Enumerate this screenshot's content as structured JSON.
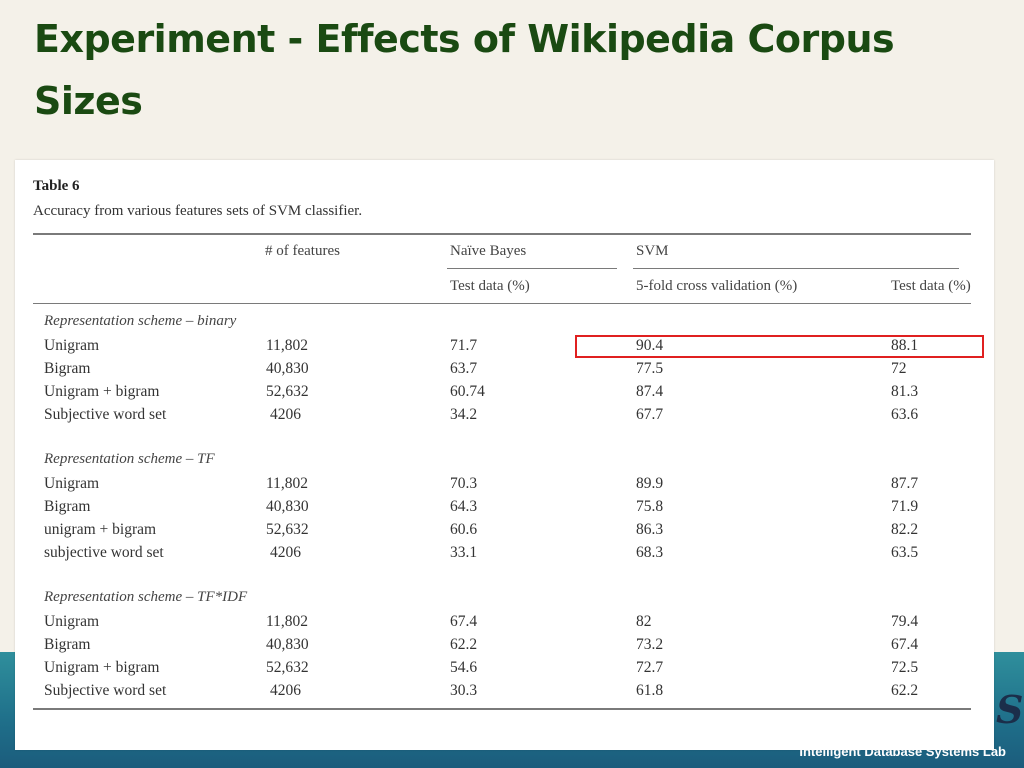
{
  "slide": {
    "title": "Experiment - Effects of Wikipedia Corpus Sizes",
    "footer_lab": "Intelligent Database Systems Lab",
    "logo_fragment": "S"
  },
  "table": {
    "label": "Table 6",
    "caption": "Accuracy from various features sets of SVM classifier.",
    "headers": {
      "features": "# of features",
      "naive_bayes": "Naïve Bayes",
      "svm": "SVM",
      "nb_test": "Test data (%)",
      "svm_cv": "5-fold cross validation (%)",
      "svm_test": "Test data (%)"
    },
    "sections": [
      {
        "title": "Representation scheme – binary",
        "rows": [
          {
            "name": "Unigram",
            "features": "11,802",
            "nb": "71.7",
            "cv": "90.4",
            "test": "88.1"
          },
          {
            "name": "Bigram",
            "features": "40,830",
            "nb": "63.7",
            "cv": "77.5",
            "test": "72"
          },
          {
            "name": "Unigram + bigram",
            "features": "52,632",
            "nb": "60.74",
            "cv": "87.4",
            "test": "81.3"
          },
          {
            "name": "Subjective word set",
            "features": "4206",
            "nb": "34.2",
            "cv": "67.7",
            "test": "63.6"
          }
        ]
      },
      {
        "title": "Representation scheme – TF",
        "rows": [
          {
            "name": "Unigram",
            "features": "11,802",
            "nb": "70.3",
            "cv": "89.9",
            "test": "87.7"
          },
          {
            "name": "Bigram",
            "features": "40,830",
            "nb": "64.3",
            "cv": "75.8",
            "test": "71.9"
          },
          {
            "name": "unigram + bigram",
            "features": "52,632",
            "nb": "60.6",
            "cv": "86.3",
            "test": "82.2"
          },
          {
            "name": "subjective word set",
            "features": "4206",
            "nb": "33.1",
            "cv": "68.3",
            "test": "63.5"
          }
        ]
      },
      {
        "title": "Representation scheme – TF*IDF",
        "rows": [
          {
            "name": "Unigram",
            "features": "11,802",
            "nb": "67.4",
            "cv": "82",
            "test": "79.4"
          },
          {
            "name": "Bigram",
            "features": "40,830",
            "nb": "62.2",
            "cv": "73.2",
            "test": "67.4"
          },
          {
            "name": "Unigram + bigram",
            "features": "52,632",
            "nb": "54.6",
            "cv": "72.7",
            "test": "72.5"
          },
          {
            "name": "Subjective word set",
            "features": "4206",
            "nb": "30.3",
            "cv": "61.8",
            "test": "62.2"
          }
        ]
      }
    ]
  },
  "highlight": {
    "color": "#e02020"
  }
}
